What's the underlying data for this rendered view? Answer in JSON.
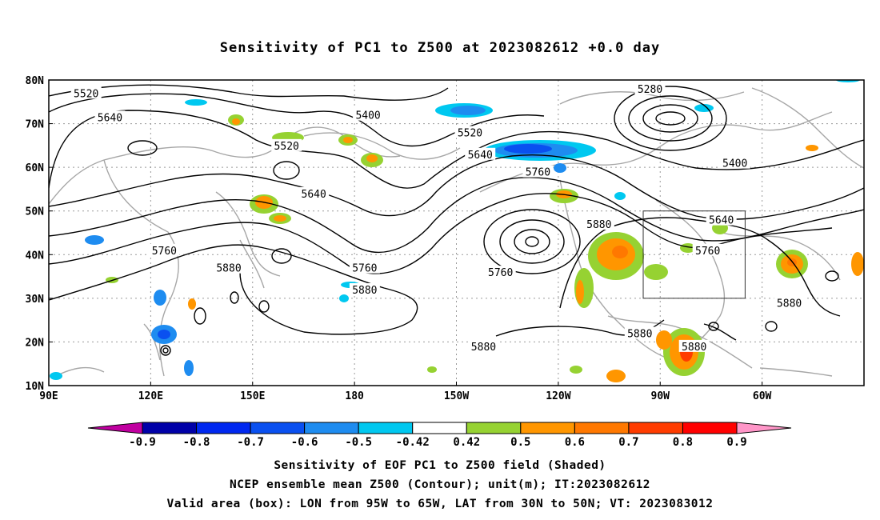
{
  "title": "Sensitivity of PC1 to Z500 at 2023082612 +0.0 day",
  "map": {
    "lat_labels": [
      "80N",
      "70N",
      "60N",
      "50N",
      "40N",
      "30N",
      "20N",
      "10N"
    ],
    "lon_labels": [
      "90E",
      "120E",
      "150E",
      "180",
      "150W",
      "120W",
      "90W",
      "60W"
    ],
    "lon_values": [
      90,
      120,
      150,
      180,
      210,
      240,
      270,
      300
    ],
    "lat_values": [
      80,
      70,
      60,
      50,
      40,
      30,
      20,
      10
    ],
    "contour_labels": [
      {
        "text": "5520",
        "lon": 101,
        "lat": 77
      },
      {
        "text": "5640",
        "lon": 108,
        "lat": 71.5
      },
      {
        "text": "5400",
        "lon": 184,
        "lat": 72
      },
      {
        "text": "5520",
        "lon": 160,
        "lat": 65
      },
      {
        "text": "5520",
        "lon": 214,
        "lat": 68
      },
      {
        "text": "5640",
        "lon": 217,
        "lat": 63
      },
      {
        "text": "5760",
        "lon": 234,
        "lat": 59
      },
      {
        "text": "5280",
        "lon": 267,
        "lat": 78
      },
      {
        "text": "5400",
        "lon": 292,
        "lat": 61
      },
      {
        "text": "5640",
        "lon": 168,
        "lat": 54
      },
      {
        "text": "5760",
        "lon": 124,
        "lat": 41
      },
      {
        "text": "5880",
        "lon": 143,
        "lat": 37
      },
      {
        "text": "5760",
        "lon": 183,
        "lat": 37
      },
      {
        "text": "5880",
        "lon": 183,
        "lat": 32
      },
      {
        "text": "5760",
        "lon": 223,
        "lat": 36
      },
      {
        "text": "5880",
        "lon": 252,
        "lat": 47
      },
      {
        "text": "5640",
        "lon": 288,
        "lat": 48
      },
      {
        "text": "5760",
        "lon": 284,
        "lat": 41
      },
      {
        "text": "5880",
        "lon": 264,
        "lat": 22
      },
      {
        "text": "5880",
        "lon": 280,
        "lat": 19
      },
      {
        "text": "5880",
        "lon": 308,
        "lat": 29
      },
      {
        "text": "5880",
        "lon": 218,
        "lat": 19
      }
    ],
    "valid_box": {
      "lon_min": 265,
      "lon_max": 295,
      "lat_min": 30,
      "lat_max": 50
    },
    "colors": {
      "contour": "#000000",
      "coast": "#a6a6a6",
      "grid": "#9a9a9a"
    }
  },
  "colorbar": {
    "labels": [
      "-0.9",
      "-0.8",
      "-0.7",
      "-0.6",
      "-0.5",
      "-0.42",
      "0.42",
      "0.5",
      "0.6",
      "0.7",
      "0.8",
      "0.9"
    ],
    "colors": [
      "#c000a0",
      "#0000a8",
      "#0028f0",
      "#0a50f0",
      "#1e8cf0",
      "#00c8f0",
      "#ffffff",
      "#96d232",
      "#ff9600",
      "#ff7800",
      "#ff3c00",
      "#ff0000",
      "#ff96c8"
    ]
  },
  "caption": [
    "Sensitivity of EOF PC1 to Z500 field (Shaded)",
    "NCEP ensemble mean Z500 (Contour); unit(m); IT:2023082612",
    "Valid area (box): LON from 95W to 65W, LAT from 30N to 50N; VT: 2023083012"
  ]
}
